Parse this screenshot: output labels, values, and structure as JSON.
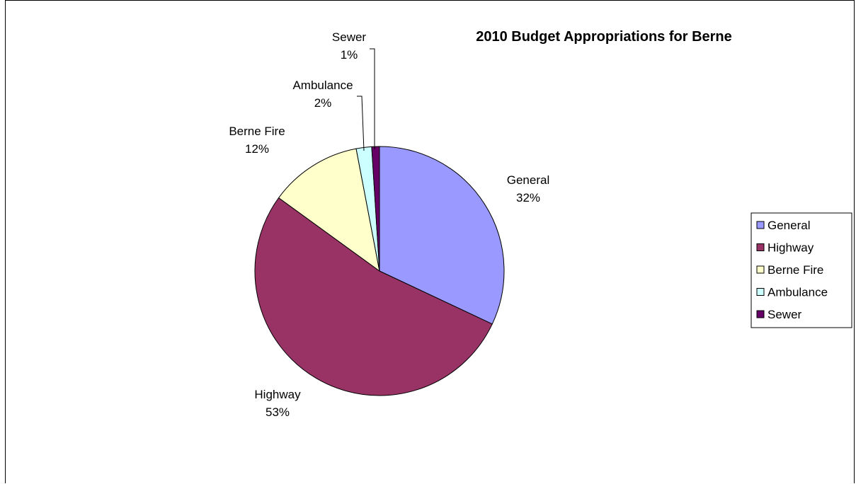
{
  "chart_data": {
    "type": "pie",
    "title": "2010 Budget Appropriations for Berne",
    "slices": [
      {
        "label": "General",
        "value": 32,
        "percent_label": "32%",
        "color": "#9999FF"
      },
      {
        "label": "Highway",
        "value": 53,
        "percent_label": "53%",
        "color": "#993366"
      },
      {
        "label": "Berne Fire",
        "value": 12,
        "percent_label": "12%",
        "color": "#FFFFCC"
      },
      {
        "label": "Ambulance",
        "value": 2,
        "percent_label": "2%",
        "color": "#CCFFFF"
      },
      {
        "label": "Sewer",
        "value": 1,
        "percent_label": "1%",
        "color": "#660066"
      }
    ],
    "legend_position": "right"
  }
}
